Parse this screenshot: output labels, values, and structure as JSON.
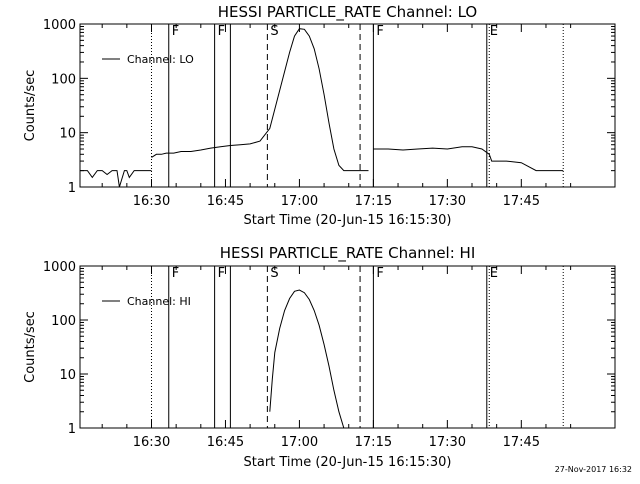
{
  "chart_data": [
    {
      "type": "line",
      "title": "HESSI PARTICLE_RATE Channel: LO",
      "xlabel": "Start Time (20-Jun-15 16:15:30)",
      "ylabel": "Counts/sec",
      "yscale": "log",
      "ylim": [
        1,
        1000
      ],
      "xlim_minutes_after_start": [
        0,
        108.5
      ],
      "x_tick_labels": [
        "16:30",
        "16:45",
        "17:00",
        "17:15",
        "17:30",
        "17:45"
      ],
      "y_tick_labels": [
        "1",
        "10",
        "100",
        "1000"
      ],
      "legend": {
        "position": "top-left",
        "entries": [
          "Channel: LO"
        ]
      },
      "grid": false,
      "markers": [
        {
          "label": "",
          "time": "16:30:00",
          "style": "dotted"
        },
        {
          "label": "F",
          "time": "16:33:30",
          "style": "solid"
        },
        {
          "label": "F",
          "time": "16:42:48",
          "style": "solid"
        },
        {
          "label": "",
          "time": "16:46:00",
          "style": "solid"
        },
        {
          "label": "S",
          "time": "16:53:30",
          "style": "dashed"
        },
        {
          "label": "",
          "time": "17:12:18",
          "style": "dashed"
        },
        {
          "label": "F",
          "time": "17:15:00",
          "style": "solid"
        },
        {
          "label": "E",
          "time": "17:38:00",
          "style": "solid"
        },
        {
          "label": "",
          "time": "17:38:30",
          "style": "dotted"
        },
        {
          "label": "",
          "time": "17:53:30",
          "style": "dotted"
        }
      ],
      "series": [
        {
          "name": "Channel: LO",
          "segments": [
            {
              "x": [
                "16:15:30",
                "16:17:00",
                "16:18:00",
                "16:19:00",
                "16:20:00",
                "16:21:00",
                "16:22:00",
                "16:23:00",
                "16:23:30",
                "16:24:30",
                "16:25:00",
                "16:25:30",
                "16:26:30",
                "16:28:00",
                "16:29:00",
                "16:30:00"
              ],
              "y": [
                2.0,
                2.0,
                1.5,
                2.0,
                2.0,
                1.7,
                2.0,
                2.0,
                1.0,
                2.0,
                2.0,
                1.5,
                2.0,
                2.0,
                2.0,
                2.0
              ]
            },
            {
              "x": [
                "16:30:00",
                "16:31:00",
                "16:32:00",
                "16:33:00",
                "16:34:30",
                "16:36:00",
                "16:38:00",
                "16:40:00",
                "16:42:00",
                "16:44:00",
                "16:46:00",
                "16:48:00",
                "16:50:00",
                "16:52:00",
                "16:54:00",
                "16:56:00",
                "16:58:00",
                "16:59:00",
                "17:00:00",
                "17:01:00",
                "17:02:00",
                "17:03:00",
                "17:04:00",
                "17:05:00",
                "17:06:00",
                "17:07:00",
                "17:08:00",
                "17:09:00",
                "17:10:00",
                "17:11:00",
                "17:12:00",
                "17:13:00",
                "17:14:00"
              ],
              "y": [
                3.5,
                4.0,
                4.0,
                4.2,
                4.2,
                4.5,
                4.5,
                4.8,
                5.2,
                5.5,
                5.8,
                6.0,
                6.2,
                7.0,
                12.0,
                60.0,
                300.0,
                600.0,
                820.0,
                800.0,
                600.0,
                350.0,
                150.0,
                50.0,
                15.0,
                5.0,
                2.5,
                2.0,
                2.0,
                2.0,
                2.0,
                2.0,
                2.0
              ]
            },
            {
              "x": [
                "17:15:00",
                "17:18:00",
                "17:21:00",
                "17:24:00",
                "17:27:00",
                "17:30:00",
                "17:33:00",
                "17:35:00",
                "17:37:00",
                "17:38:30",
                "17:39:00",
                "17:42:00",
                "17:45:00",
                "17:48:00",
                "17:51:00",
                "17:53:30"
              ],
              "y": [
                5.0,
                5.0,
                4.8,
                5.0,
                5.2,
                5.0,
                5.5,
                5.5,
                5.0,
                4.0,
                3.0,
                3.0,
                2.8,
                2.0,
                2.0,
                2.0
              ]
            }
          ]
        }
      ]
    },
    {
      "type": "line",
      "title": "HESSI PARTICLE_RATE Channel: HI",
      "xlabel": "Start Time (20-Jun-15 16:15:30)",
      "ylabel": "Counts/sec",
      "yscale": "log",
      "ylim": [
        1,
        1000
      ],
      "xlim_minutes_after_start": [
        0,
        108.5
      ],
      "x_tick_labels": [
        "16:30",
        "16:45",
        "17:00",
        "17:15",
        "17:30",
        "17:45"
      ],
      "y_tick_labels": [
        "1",
        "10",
        "100",
        "1000"
      ],
      "legend": {
        "position": "top-left",
        "entries": [
          "Channel: HI"
        ]
      },
      "grid": false,
      "markers": [
        {
          "label": "",
          "time": "16:30:00",
          "style": "dotted"
        },
        {
          "label": "F",
          "time": "16:33:30",
          "style": "solid"
        },
        {
          "label": "F",
          "time": "16:42:48",
          "style": "solid"
        },
        {
          "label": "",
          "time": "16:46:00",
          "style": "solid"
        },
        {
          "label": "S",
          "time": "16:53:30",
          "style": "dashed"
        },
        {
          "label": "",
          "time": "17:12:18",
          "style": "dashed"
        },
        {
          "label": "F",
          "time": "17:15:00",
          "style": "solid"
        },
        {
          "label": "E",
          "time": "17:38:00",
          "style": "solid"
        },
        {
          "label": "",
          "time": "17:38:30",
          "style": "dotted"
        },
        {
          "label": "",
          "time": "17:53:30",
          "style": "dotted"
        }
      ],
      "series": [
        {
          "name": "Channel: HI",
          "segments": [
            {
              "x": [
                "16:54:00",
                "16:54:30",
                "16:55:00",
                "16:56:00",
                "16:57:00",
                "16:58:00",
                "16:59:00",
                "17:00:00",
                "17:01:00",
                "17:02:00",
                "17:03:00",
                "17:04:00",
                "17:05:00",
                "17:06:00",
                "17:07:00",
                "17:08:00",
                "17:09:00"
              ],
              "y": [
                2.0,
                8.0,
                25.0,
                70.0,
                150.0,
                250.0,
                340.0,
                360.0,
                320.0,
                240.0,
                150.0,
                80.0,
                35.0,
                14.0,
                5.0,
                2.0,
                1.0
              ]
            }
          ]
        }
      ]
    }
  ],
  "footer": {
    "timestamp": "27-Nov-2017 16:32"
  }
}
